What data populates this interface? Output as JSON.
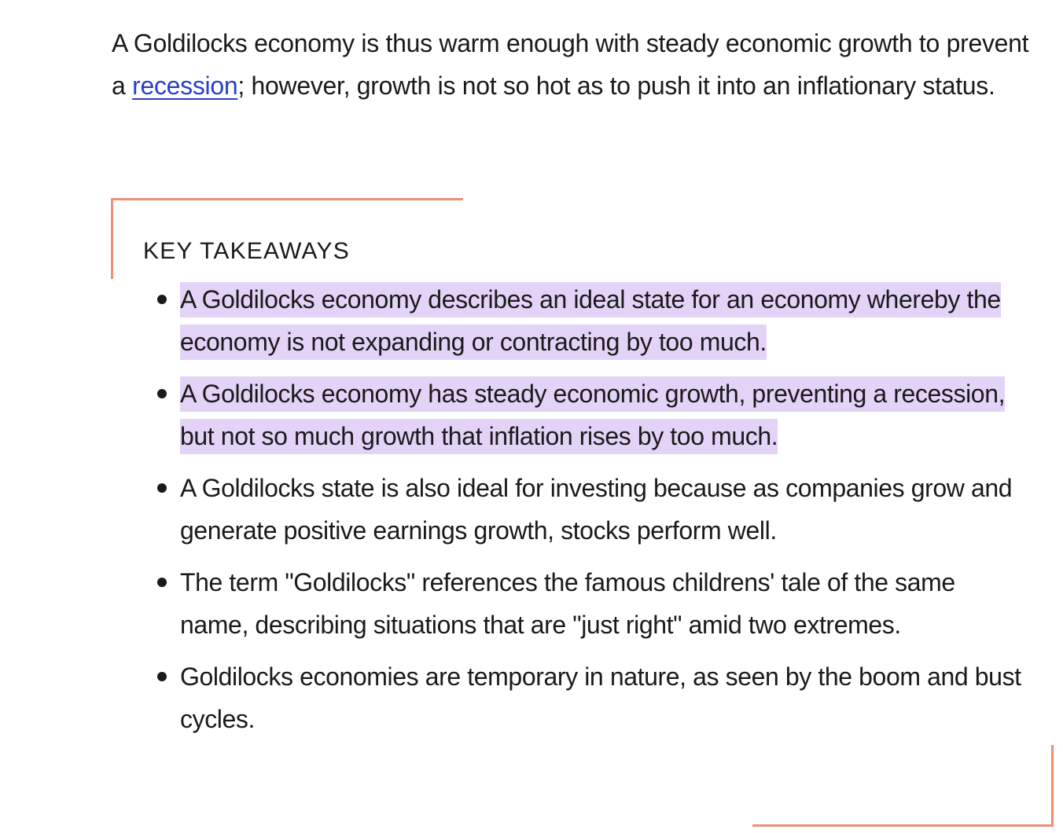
{
  "intro": {
    "text_before_link": "A Goldilocks economy is thus warm enough with steady economic growth to prevent a ",
    "link_text": "recession",
    "text_after_link": "; however, growth is not so hot as to push it into an inflationary status."
  },
  "key_takeaways": {
    "heading": "KEY TAKEAWAYS",
    "items": [
      {
        "text": "A Goldilocks economy describes an ideal state for an economy whereby the economy is not expanding or contracting by too much.",
        "highlighted": true
      },
      {
        "text": "A Goldilocks economy has steady economic growth, preventing a recession, but not so much growth that inflation rises by too much.",
        "highlighted": true
      },
      {
        "text": "A Goldilocks state is also ideal for investing because as companies grow and generate positive earnings growth, stocks perform well.",
        "highlighted": false
      },
      {
        "text": "The term \"Goldilocks\" references the famous childrens' tale of the same name, describing situations that are \"just right\" amid two extremes.",
        "highlighted": false
      },
      {
        "text": "Goldilocks economies are temporary in nature, as seen by the boom and bust cycles.",
        "highlighted": false
      }
    ]
  },
  "colors": {
    "accent": "#ee8e72",
    "highlight": "#e3d3f7",
    "link": "#2a3fc7",
    "text": "#1a1a1a"
  }
}
